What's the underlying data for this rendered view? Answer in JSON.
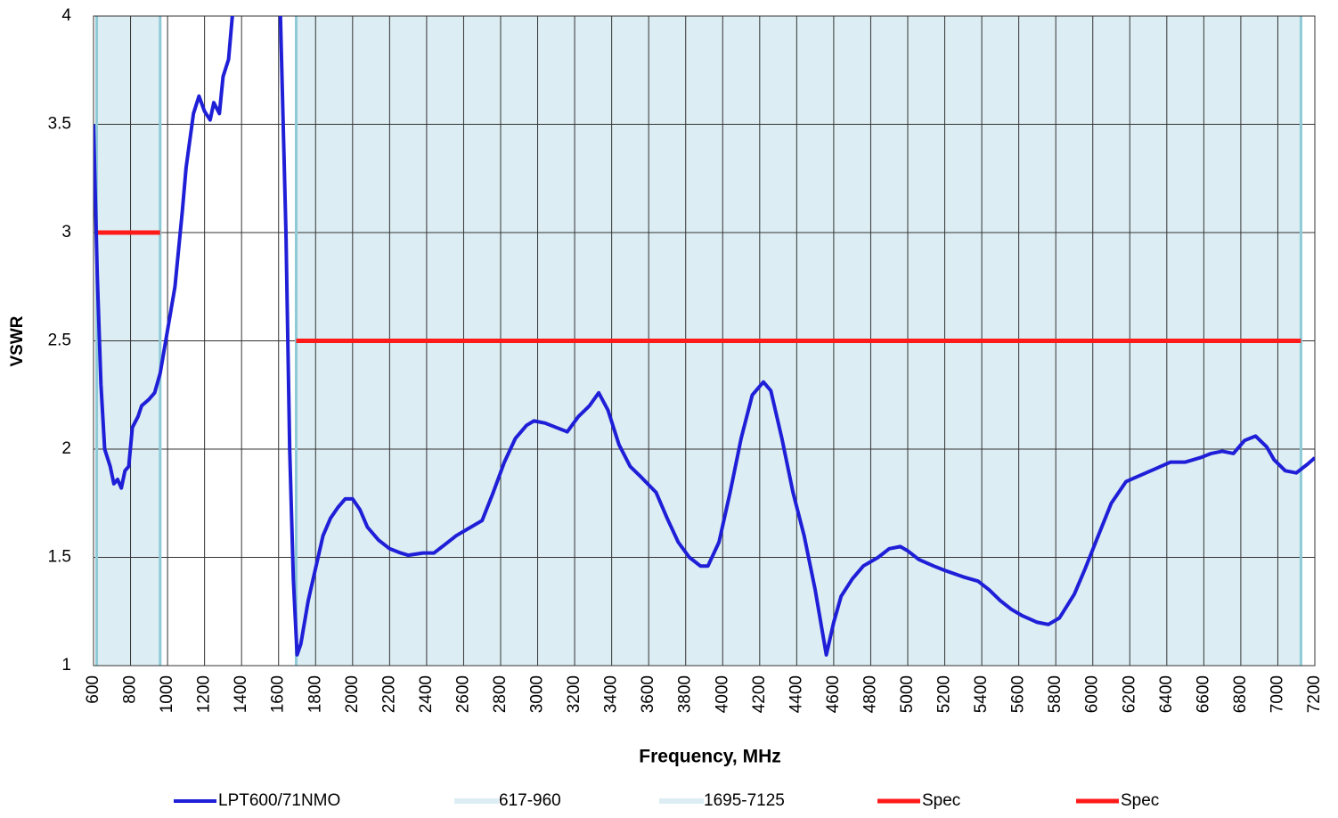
{
  "chart_data": {
    "type": "line",
    "x_label": "Frequency, MHz",
    "y_label": "VSWR",
    "xlim": [
      600,
      7200
    ],
    "ylim": [
      1,
      4
    ],
    "xticks": [
      600,
      800,
      1000,
      1200,
      1400,
      1600,
      1800,
      2000,
      2200,
      2400,
      2600,
      2800,
      3000,
      3200,
      3400,
      3600,
      3800,
      4000,
      4200,
      4400,
      4600,
      4800,
      5000,
      5200,
      5400,
      5600,
      5800,
      6000,
      6200,
      6400,
      6600,
      6800,
      7000,
      7200
    ],
    "yticks": [
      1,
      1.5,
      2,
      2.5,
      3,
      3.5,
      4
    ],
    "grid": true,
    "series": [
      {
        "name": "LPT600/71NMO",
        "color": "#1f1fd8",
        "x": [
          600,
          620,
          640,
          660,
          690,
          710,
          730,
          750,
          770,
          790,
          810,
          840,
          860,
          900,
          930,
          960,
          1000,
          1040,
          1080,
          1100,
          1140,
          1170,
          1200,
          1230,
          1250,
          1280,
          1300,
          1330,
          1360,
          1400,
          1580,
          1610,
          1640,
          1660,
          1680,
          1700,
          1720,
          1760,
          1800,
          1840,
          1880,
          1920,
          1960,
          2000,
          2040,
          2080,
          2140,
          2200,
          2260,
          2300,
          2380,
          2440,
          2500,
          2560,
          2620,
          2700,
          2760,
          2820,
          2880,
          2940,
          2980,
          3040,
          3100,
          3160,
          3220,
          3280,
          3330,
          3380,
          3440,
          3500,
          3560,
          3640,
          3700,
          3760,
          3820,
          3880,
          3920,
          3980,
          4040,
          4100,
          4160,
          4220,
          4260,
          4320,
          4380,
          4440,
          4500,
          4560,
          4600,
          4640,
          4700,
          4760,
          4840,
          4900,
          4960,
          5000,
          5060,
          5140,
          5200,
          5300,
          5380,
          5440,
          5500,
          5560,
          5620,
          5700,
          5760,
          5820,
          5900,
          5960,
          6020,
          6100,
          6180,
          6260,
          6340,
          6420,
          6500,
          6580,
          6640,
          6700,
          6760,
          6820,
          6880,
          6940,
          6980,
          7040,
          7100,
          7160,
          7200
        ],
        "values": [
          3.5,
          2.8,
          2.3,
          2.0,
          1.92,
          1.84,
          1.86,
          1.82,
          1.9,
          1.92,
          2.1,
          2.15,
          2.2,
          2.23,
          2.26,
          2.35,
          2.55,
          2.75,
          3.1,
          3.3,
          3.55,
          3.63,
          3.56,
          3.52,
          3.6,
          3.55,
          3.72,
          3.8,
          4.1,
          4.4,
          4.4,
          4.0,
          3.0,
          2.0,
          1.4,
          1.05,
          1.1,
          1.3,
          1.45,
          1.6,
          1.68,
          1.73,
          1.77,
          1.77,
          1.72,
          1.64,
          1.58,
          1.54,
          1.52,
          1.51,
          1.52,
          1.52,
          1.56,
          1.6,
          1.63,
          1.67,
          1.8,
          1.94,
          2.05,
          2.11,
          2.13,
          2.12,
          2.1,
          2.08,
          2.15,
          2.2,
          2.26,
          2.18,
          2.02,
          1.92,
          1.87,
          1.8,
          1.68,
          1.57,
          1.5,
          1.46,
          1.46,
          1.57,
          1.8,
          2.05,
          2.25,
          2.31,
          2.27,
          2.05,
          1.8,
          1.6,
          1.35,
          1.05,
          1.2,
          1.32,
          1.4,
          1.46,
          1.5,
          1.54,
          1.55,
          1.53,
          1.49,
          1.46,
          1.44,
          1.41,
          1.39,
          1.35,
          1.3,
          1.26,
          1.23,
          1.2,
          1.19,
          1.22,
          1.33,
          1.45,
          1.58,
          1.75,
          1.85,
          1.88,
          1.91,
          1.94,
          1.94,
          1.96,
          1.98,
          1.99,
          1.98,
          2.04,
          2.06,
          2.01,
          1.95,
          1.9,
          1.89,
          1.93,
          1.96
        ]
      }
    ],
    "bands": [
      {
        "name": "617-960",
        "range": [
          617,
          960
        ],
        "color": "#dcedf3",
        "edge_color": "#8ecbd6"
      },
      {
        "name": "1695-7125",
        "range": [
          1695,
          7125
        ],
        "color": "#dcedf3",
        "edge_color": "#8ecbd6"
      }
    ],
    "specs": [
      {
        "name": "Spec",
        "x": [
          617,
          960
        ],
        "value": 3,
        "color": "#ff1a1a"
      },
      {
        "name": "Spec",
        "x": [
          1695,
          7125
        ],
        "value": 2.5,
        "color": "#ff1a1a"
      }
    ]
  }
}
